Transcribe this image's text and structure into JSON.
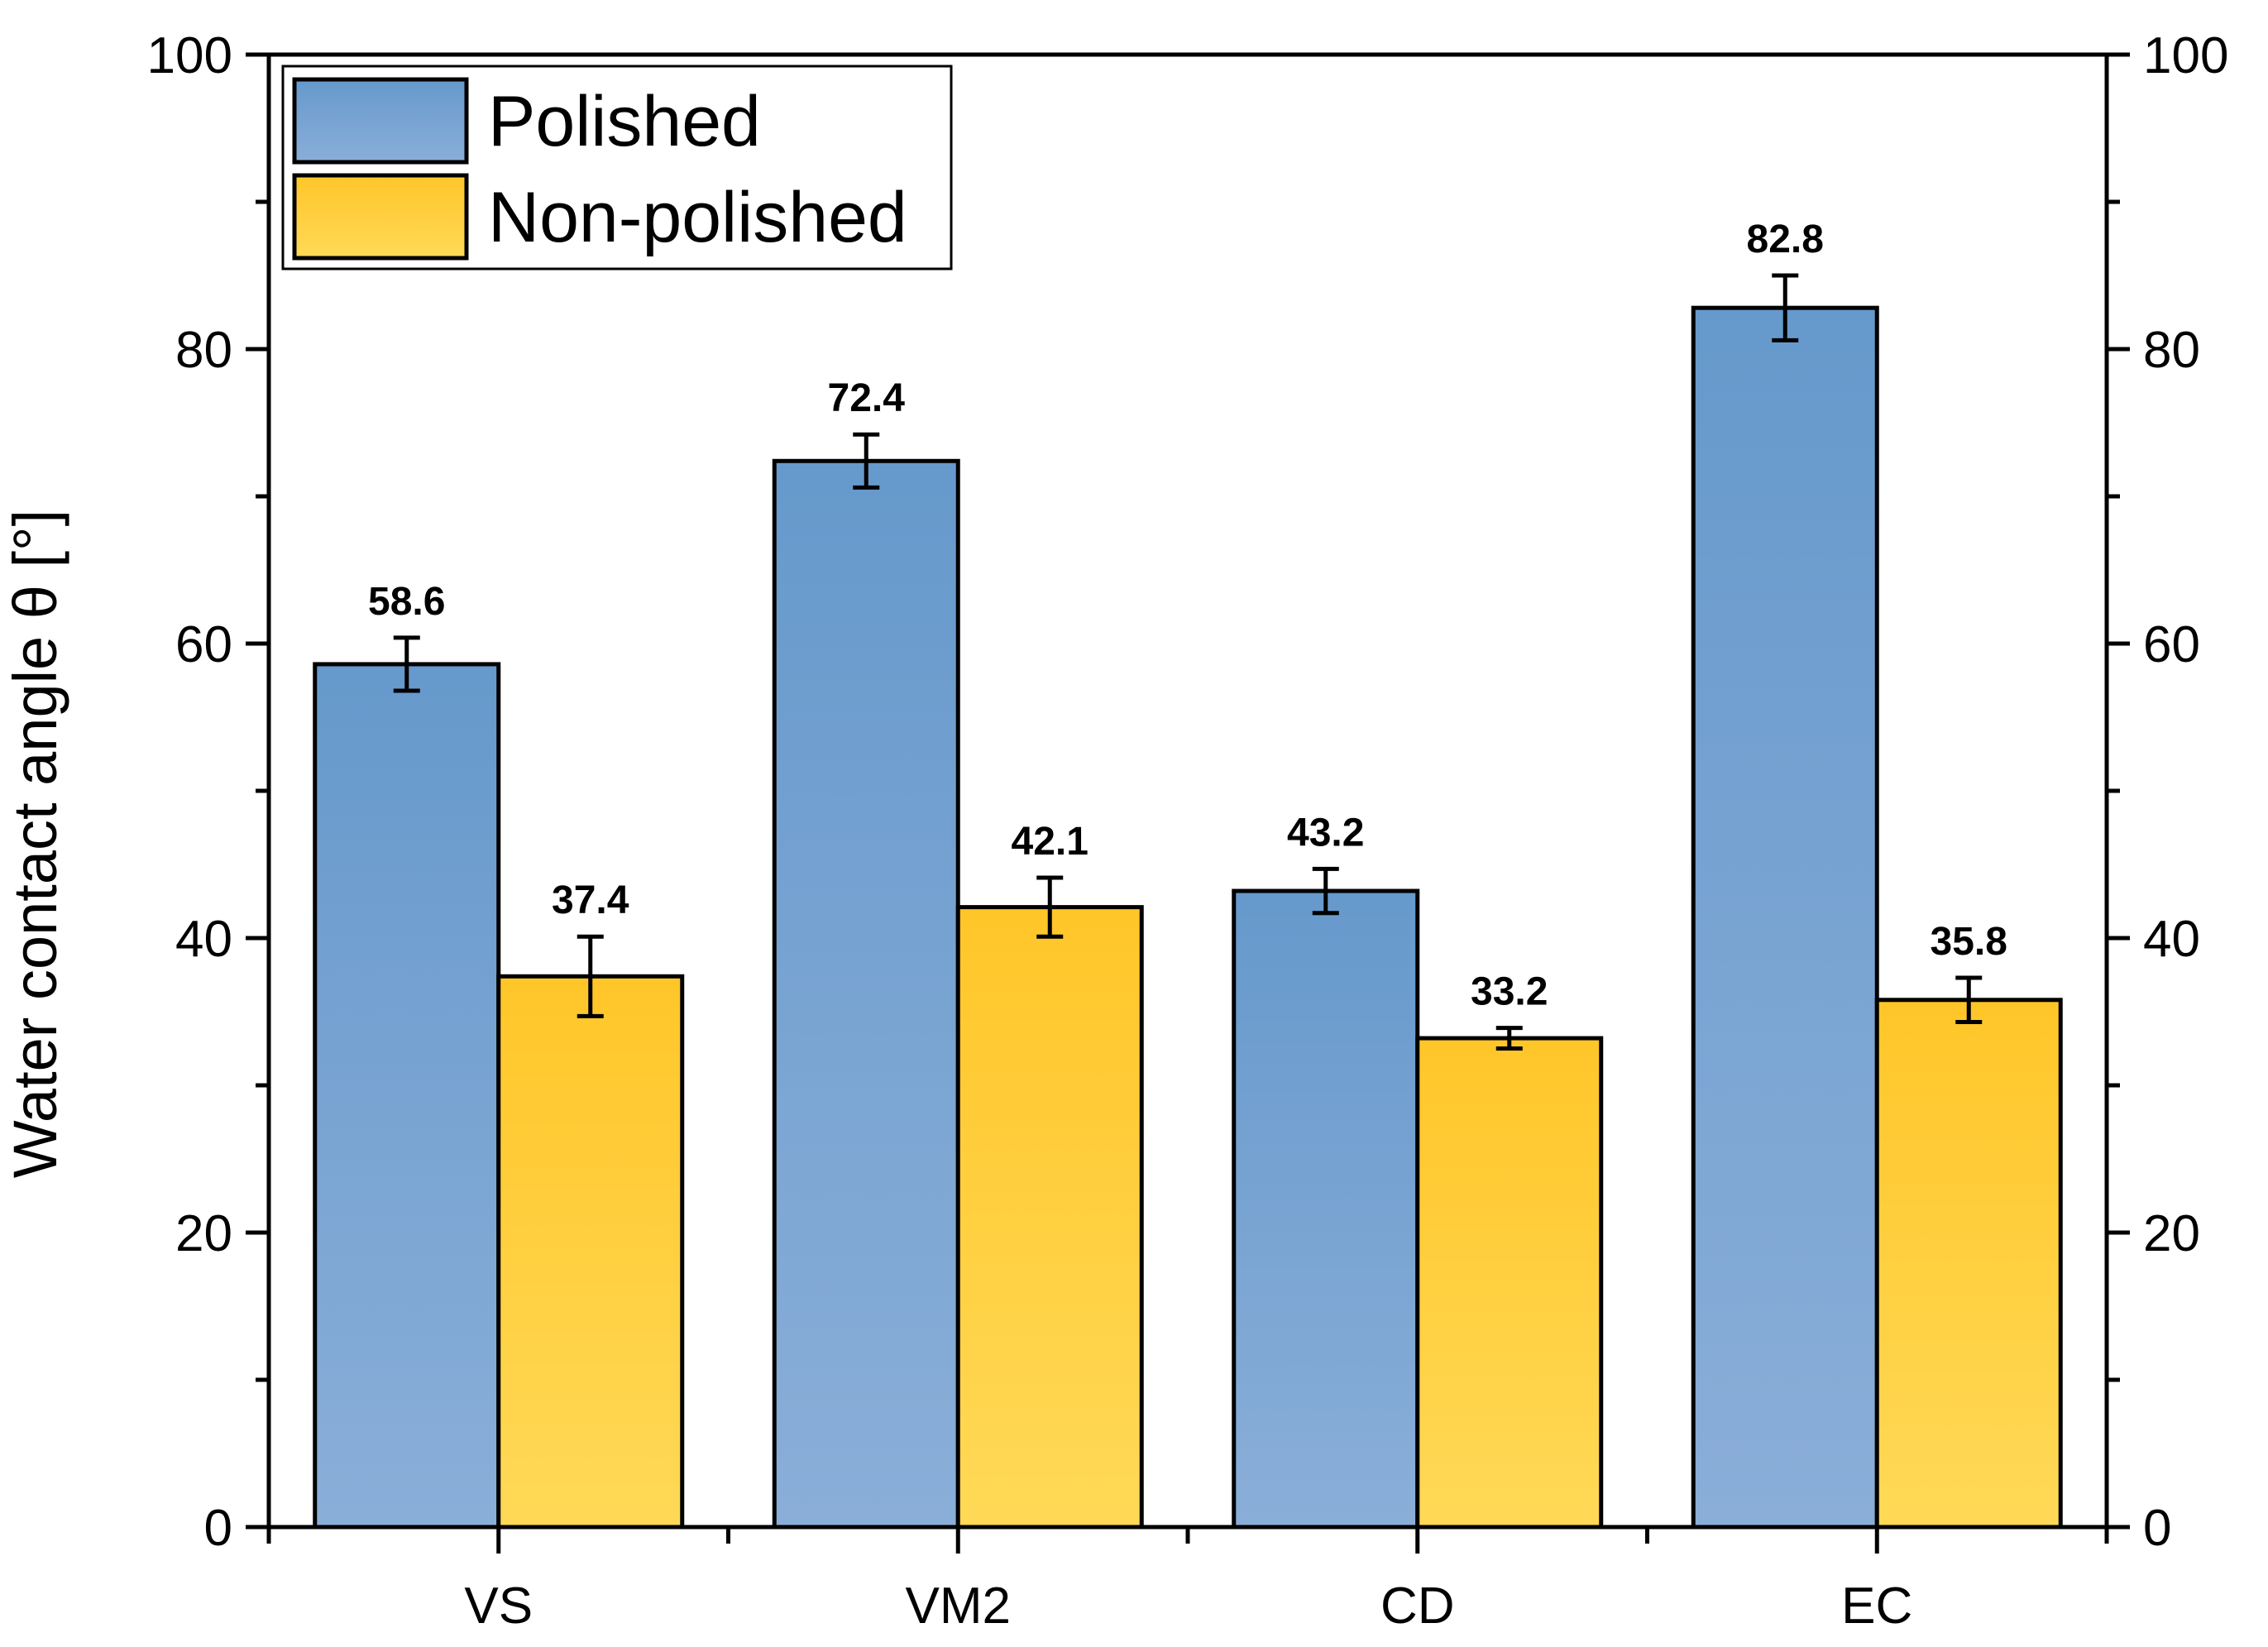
{
  "chart_data": {
    "type": "bar",
    "title": "",
    "xlabel": "",
    "ylabel": "Water contact angle θ [°]",
    "ylim": [
      0,
      100
    ],
    "yticks": [
      0,
      20,
      40,
      60,
      80,
      100
    ],
    "y_minor_step": 10,
    "grid": false,
    "right_axis_mirrored": true,
    "legend_position": "top-left",
    "categories": [
      "VS",
      "VM2",
      "CD",
      "EC"
    ],
    "series": [
      {
        "name": "Polished",
        "values": [
          58.6,
          72.4,
          43.2,
          82.8
        ],
        "errors": [
          1.8,
          1.8,
          1.5,
          2.2
        ],
        "labels": [
          "58.6",
          "72.4",
          "43.2",
          "82.8"
        ],
        "color_top": "#6699CC",
        "color_bottom": "#8AAED8"
      },
      {
        "name": "Non-polished",
        "values": [
          37.4,
          42.1,
          33.2,
          35.8
        ],
        "errors": [
          2.7,
          2.0,
          0.7,
          1.5
        ],
        "labels": [
          "37.4",
          "42.1",
          "33.2",
          "35.8"
        ],
        "color_top": "#FFC629",
        "color_bottom": "#FFD957"
      }
    ]
  }
}
